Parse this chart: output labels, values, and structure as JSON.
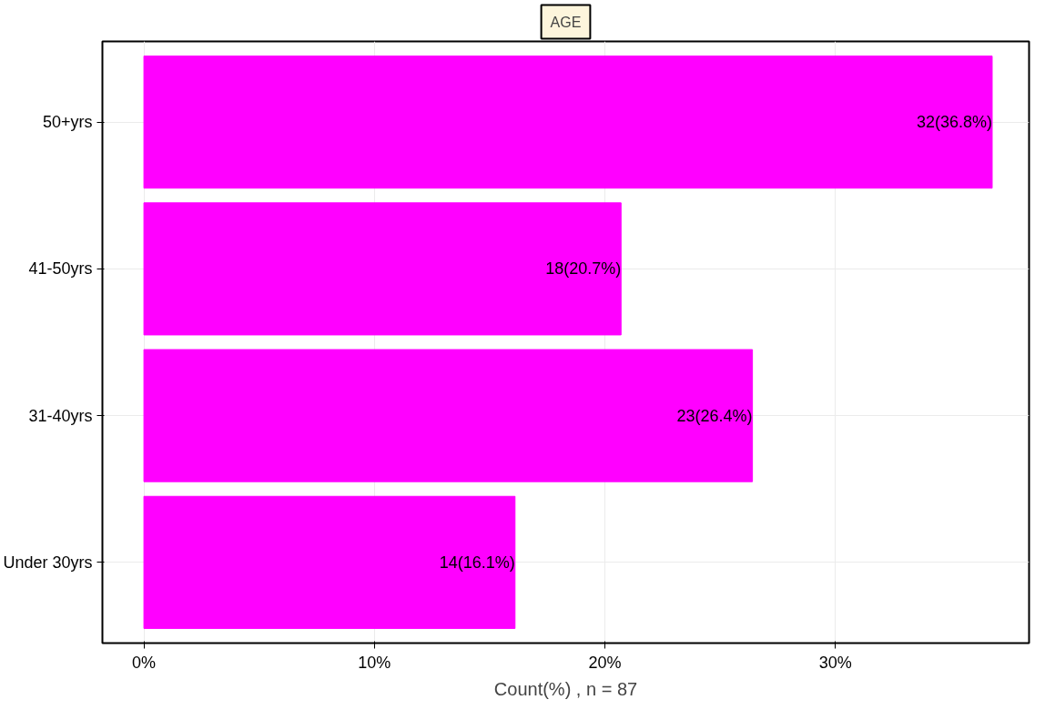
{
  "chart_data": {
    "type": "bar",
    "orientation": "horizontal",
    "title": "AGE",
    "xlabel": "Count(%) , n = 87",
    "categories": [
      "50+yrs",
      "41-50yrs",
      "31-40yrs",
      "Under 30yrs"
    ],
    "values": [
      36.8,
      20.7,
      26.4,
      16.1
    ],
    "value_labels": [
      "32(36.8%)",
      "18(20.7%)",
      "23(26.4%)",
      "14(16.1%)"
    ],
    "color": "#ff00ff",
    "xlim": [
      -1.8,
      38.4
    ],
    "xticks": [
      {
        "value": 0,
        "label": "0%"
      },
      {
        "value": 10,
        "label": "10%"
      },
      {
        "value": 20,
        "label": "20%"
      },
      {
        "value": 30,
        "label": "30%"
      }
    ],
    "grid": true
  }
}
